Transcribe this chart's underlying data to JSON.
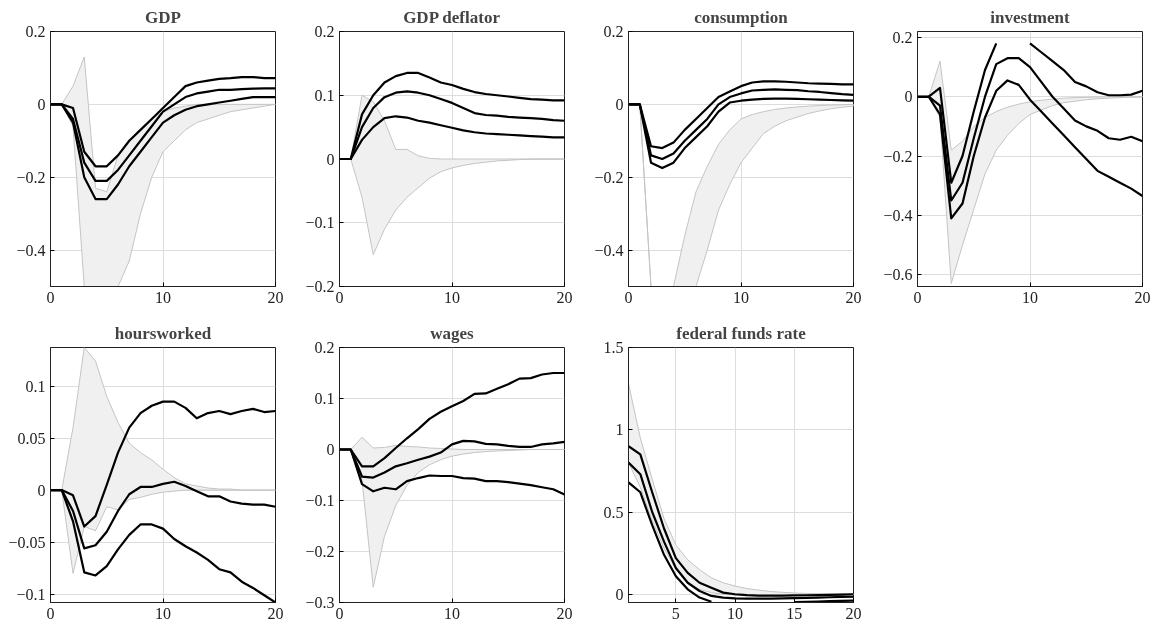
{
  "chart_data": [
    {
      "type": "line",
      "title": "GDP",
      "x": [
        0,
        1,
        2,
        3,
        4,
        5,
        6,
        7,
        8,
        9,
        10,
        11,
        12,
        13,
        14,
        15,
        16,
        17,
        18,
        19,
        20
      ],
      "xlim": [
        0,
        20
      ],
      "xticks": [
        0,
        10,
        20
      ],
      "ylim": [
        -0.5,
        0.2
      ],
      "yticks": [
        -0.4,
        -0.2,
        0,
        0.2
      ],
      "grid": true,
      "series": [
        {
          "color": "#000000",
          "values": [
            0,
            0,
            -0.01,
            -0.13,
            -0.17,
            -0.17,
            -0.14,
            -0.1,
            -0.07,
            -0.04,
            -0.01,
            0.02,
            0.05,
            0.06,
            0.065,
            0.07,
            0.072,
            0.075,
            0.075,
            0.072,
            0.072
          ]
        },
        {
          "color": "#000000",
          "values": [
            0,
            0,
            -0.04,
            -0.16,
            -0.21,
            -0.21,
            -0.18,
            -0.14,
            -0.1,
            -0.06,
            -0.02,
            0,
            0.02,
            0.03,
            0.035,
            0.04,
            0.04,
            0.042,
            0.043,
            0.044,
            0.044
          ],
          "lower": [
            0,
            0,
            -0.06,
            -0.5,
            -0.5,
            -0.5,
            -0.5,
            -0.43,
            -0.3,
            -0.2,
            -0.13,
            -0.1,
            -0.07,
            -0.05,
            -0.04,
            -0.03,
            -0.02,
            -0.015,
            -0.01,
            -0.005,
            0
          ],
          "upper": [
            0,
            0,
            0.05,
            0.13,
            -0.23,
            -0.24,
            -0.14,
            -0.1,
            -0.07,
            -0.04,
            -0.02,
            -0.01,
            -0.005,
            0,
            0,
            0,
            0,
            0,
            0,
            0,
            0
          ]
        },
        {
          "color": "#000000",
          "values": [
            0,
            0,
            -0.05,
            -0.2,
            -0.26,
            -0.26,
            -0.22,
            -0.17,
            -0.13,
            -0.09,
            -0.05,
            -0.03,
            -0.015,
            -0.005,
            0,
            0.005,
            0.01,
            0.015,
            0.02,
            0.02,
            0.02
          ]
        }
      ]
    },
    {
      "type": "line",
      "title": "GDP deflator",
      "x": [
        0,
        1,
        2,
        3,
        4,
        5,
        6,
        7,
        8,
        9,
        10,
        11,
        12,
        13,
        14,
        15,
        16,
        17,
        18,
        19,
        20
      ],
      "xlim": [
        0,
        20
      ],
      "xticks": [
        0,
        10,
        20
      ],
      "ylim": [
        -0.2,
        0.2
      ],
      "yticks": [
        -0.2,
        -0.1,
        0,
        0.1,
        0.2
      ],
      "grid": true,
      "series": [
        {
          "color": "#000000",
          "values": [
            0,
            0,
            0.07,
            0.1,
            0.12,
            0.13,
            0.135,
            0.135,
            0.128,
            0.12,
            0.116,
            0.11,
            0.105,
            0.102,
            0.1,
            0.098,
            0.096,
            0.094,
            0.093,
            0.092,
            0.092
          ]
        },
        {
          "color": "#000000",
          "values": [
            0,
            0,
            0.05,
            0.08,
            0.097,
            0.104,
            0.106,
            0.104,
            0.1,
            0.094,
            0.088,
            0.08,
            0.072,
            0.069,
            0.068,
            0.066,
            0.065,
            0.064,
            0.063,
            0.061,
            0.06
          ],
          "lower": [
            0,
            0,
            -0.06,
            -0.15,
            -0.11,
            -0.08,
            -0.06,
            -0.045,
            -0.03,
            -0.02,
            -0.014,
            -0.01,
            -0.007,
            -0.005,
            -0.003,
            -0.002,
            -0.001,
            0,
            0,
            0,
            0
          ],
          "upper": [
            0,
            0,
            0.1,
            0.09,
            0.06,
            0.015,
            0.015,
            0.005,
            0.001,
            0,
            0,
            0,
            0,
            0,
            0,
            0,
            0,
            0,
            0,
            0,
            0
          ]
        },
        {
          "color": "#000000",
          "values": [
            0,
            0,
            0.03,
            0.05,
            0.064,
            0.067,
            0.065,
            0.06,
            0.057,
            0.053,
            0.049,
            0.045,
            0.042,
            0.04,
            0.039,
            0.038,
            0.037,
            0.036,
            0.035,
            0.034,
            0.034
          ]
        }
      ]
    },
    {
      "type": "line",
      "title": "consumption",
      "x": [
        0,
        1,
        2,
        3,
        4,
        5,
        6,
        7,
        8,
        9,
        10,
        11,
        12,
        13,
        14,
        15,
        16,
        17,
        18,
        19,
        20
      ],
      "xlim": [
        0,
        20
      ],
      "xticks": [
        0,
        10,
        20
      ],
      "ylim": [
        -0.5,
        0.2
      ],
      "yticks": [
        -0.4,
        -0.2,
        0,
        0.2
      ],
      "grid": true,
      "series": [
        {
          "color": "#000000",
          "values": [
            0,
            0,
            -0.115,
            -0.12,
            -0.105,
            -0.07,
            -0.04,
            -0.01,
            0.02,
            0.035,
            0.05,
            0.06,
            0.063,
            0.063,
            0.062,
            0.06,
            0.058,
            0.057,
            0.056,
            0.055,
            0.055
          ]
        },
        {
          "color": "#000000",
          "values": [
            0,
            0,
            -0.14,
            -0.15,
            -0.135,
            -0.1,
            -0.07,
            -0.04,
            0,
            0.02,
            0.03,
            0.038,
            0.04,
            0.041,
            0.04,
            0.039,
            0.036,
            0.034,
            0.031,
            0.028,
            0.026
          ],
          "lower": [
            0,
            0,
            -0.5,
            -0.5,
            -0.5,
            -0.5,
            -0.5,
            -0.4,
            -0.29,
            -0.22,
            -0.16,
            -0.12,
            -0.08,
            -0.06,
            -0.045,
            -0.035,
            -0.025,
            -0.018,
            -0.012,
            -0.008,
            -0.005
          ],
          "upper": [
            0,
            0,
            -0.5,
            -0.5,
            -0.5,
            -0.36,
            -0.24,
            -0.17,
            -0.11,
            -0.07,
            -0.04,
            -0.028,
            -0.02,
            -0.014,
            -0.01,
            -0.007,
            -0.005,
            -0.003,
            -0.002,
            -0.001,
            0
          ]
        },
        {
          "color": "#000000",
          "values": [
            0,
            0,
            -0.16,
            -0.175,
            -0.16,
            -0.12,
            -0.09,
            -0.06,
            -0.02,
            0.005,
            0.01,
            0.013,
            0.015,
            0.016,
            0.016,
            0.015,
            0.014,
            0.013,
            0.012,
            0.011,
            0.01
          ]
        }
      ]
    },
    {
      "type": "line",
      "title": "investment",
      "x": [
        0,
        1,
        2,
        3,
        4,
        5,
        6,
        7,
        8,
        9,
        10,
        11,
        12,
        13,
        14,
        15,
        16,
        17,
        18,
        19,
        20
      ],
      "xlim": [
        0,
        20
      ],
      "xticks": [
        0,
        10,
        20
      ],
      "ylim": [
        -0.64,
        0.22
      ],
      "yticks": [
        -0.6,
        -0.4,
        -0.2,
        0,
        0.2
      ],
      "grid": true,
      "series": [
        {
          "color": "#000000",
          "values": [
            0,
            0,
            0.03,
            -0.29,
            -0.2,
            -0.05,
            0.09,
            0.18,
            null,
            null,
            0.18,
            0.15,
            0.12,
            0.09,
            0.05,
            0.035,
            0.015,
            0.005,
            0.005,
            0.007,
            0.02
          ]
        },
        {
          "color": "#000000",
          "values": [
            0,
            0,
            -0.03,
            -0.35,
            -0.29,
            -0.14,
            0,
            0.11,
            0.13,
            0.13,
            0.1,
            0.05,
            0,
            -0.04,
            -0.08,
            -0.1,
            -0.115,
            -0.14,
            -0.145,
            -0.135,
            -0.15
          ],
          "lower": [
            0,
            0,
            -0.07,
            -0.63,
            -0.5,
            -0.38,
            -0.26,
            -0.18,
            -0.13,
            -0.09,
            -0.06,
            -0.045,
            -0.03,
            -0.02,
            -0.015,
            -0.01,
            -0.007,
            -0.005,
            -0.003,
            -0.002,
            -0.001
          ],
          "upper": [
            0,
            0,
            0.12,
            -0.18,
            -0.15,
            -0.1,
            -0.07,
            -0.05,
            -0.035,
            -0.025,
            -0.017,
            -0.012,
            -0.008,
            -0.005,
            -0.003,
            -0.002,
            -0.001,
            0,
            0,
            0,
            0
          ]
        },
        {
          "color": "#000000",
          "values": [
            0,
            0,
            -0.06,
            -0.41,
            -0.36,
            -0.2,
            -0.07,
            0.02,
            0.055,
            0.04,
            -0.01,
            -0.05,
            -0.09,
            -0.13,
            -0.17,
            -0.21,
            -0.25,
            -0.27,
            -0.29,
            -0.31,
            -0.335
          ]
        }
      ]
    },
    {
      "type": "line",
      "title": "hoursworked",
      "x": [
        0,
        1,
        2,
        3,
        4,
        5,
        6,
        7,
        8,
        9,
        10,
        11,
        12,
        13,
        14,
        15,
        16,
        17,
        18,
        19,
        20
      ],
      "xlim": [
        0,
        20
      ],
      "xticks": [
        0,
        10,
        20
      ],
      "ylim": [
        -0.108,
        0.137
      ],
      "yticks": [
        -0.1,
        -0.05,
        0,
        0.05,
        0.1
      ],
      "grid": true,
      "series": [
        {
          "color": "#000000",
          "values": [
            0,
            0,
            -0.005,
            -0.035,
            -0.025,
            0.005,
            0.036,
            0.06,
            0.074,
            0.081,
            0.085,
            0.085,
            0.079,
            0.069,
            0.074,
            0.076,
            0.073,
            0.076,
            0.078,
            0.075,
            0.076
          ]
        },
        {
          "color": "#000000",
          "values": [
            0,
            0,
            -0.02,
            -0.056,
            -0.053,
            -0.04,
            -0.02,
            -0.004,
            0.003,
            0.003,
            0.006,
            0.008,
            0.004,
            -0.001,
            -0.006,
            -0.006,
            -0.011,
            -0.013,
            -0.014,
            -0.014,
            -0.016
          ],
          "lower": [
            0,
            0,
            -0.08,
            -0.035,
            -0.039,
            -0.016,
            -0.019,
            -0.009,
            -0.007,
            -0.004,
            -0.002,
            -0.001,
            0,
            0,
            0,
            0,
            0,
            0,
            0,
            0,
            0
          ],
          "upper": [
            0,
            0,
            0.06,
            0.137,
            0.124,
            0.09,
            0.065,
            0.045,
            0.036,
            0.029,
            0.02,
            0.012,
            0.006,
            0.004,
            0.002,
            0.001,
            0.001,
            0,
            0,
            0,
            0
          ]
        },
        {
          "color": "#000000",
          "values": [
            0,
            0,
            -0.03,
            -0.079,
            -0.082,
            -0.073,
            -0.057,
            -0.043,
            -0.033,
            -0.033,
            -0.037,
            -0.047,
            -0.054,
            -0.06,
            -0.067,
            -0.076,
            -0.079,
            -0.088,
            -0.094,
            -0.101,
            -0.108
          ]
        }
      ]
    },
    {
      "type": "line",
      "title": "wages",
      "x": [
        0,
        1,
        2,
        3,
        4,
        5,
        6,
        7,
        8,
        9,
        10,
        11,
        12,
        13,
        14,
        15,
        16,
        17,
        18,
        19,
        20
      ],
      "xlim": [
        0,
        20
      ],
      "xticks": [
        0,
        10,
        20
      ],
      "ylim": [
        -0.3,
        0.2
      ],
      "yticks": [
        -0.3,
        -0.2,
        -0.1,
        0,
        0.1,
        0.2
      ],
      "grid": true,
      "series": [
        {
          "color": "#000000",
          "values": [
            0,
            0,
            -0.033,
            -0.033,
            -0.017,
            0.003,
            0.022,
            0.04,
            0.06,
            0.074,
            0.085,
            0.095,
            0.109,
            0.11,
            0.119,
            0.128,
            0.139,
            0.14,
            0.147,
            0.15,
            0.15
          ]
        },
        {
          "color": "#000000",
          "values": [
            0,
            0,
            -0.053,
            -0.055,
            -0.045,
            -0.033,
            -0.027,
            -0.02,
            -0.014,
            -0.006,
            0.01,
            0.017,
            0.016,
            0.011,
            0.01,
            0.007,
            0.005,
            0.005,
            0.01,
            0.012,
            0.015
          ],
          "lower": [
            0,
            0,
            -0.06,
            -0.27,
            -0.17,
            -0.11,
            -0.07,
            -0.045,
            -0.03,
            -0.02,
            -0.013,
            -0.009,
            -0.006,
            -0.004,
            -0.003,
            -0.002,
            -0.001,
            0,
            0,
            0,
            0
          ],
          "upper": [
            0,
            0,
            0.024,
            0.003,
            0.004,
            0.008,
            0.006,
            0.005,
            0.003,
            0.002,
            0.001,
            0,
            0,
            0,
            0,
            0,
            0,
            0,
            0,
            0,
            0
          ]
        },
        {
          "color": "#000000",
          "values": [
            0,
            0,
            -0.068,
            -0.082,
            -0.075,
            -0.078,
            -0.062,
            -0.056,
            -0.051,
            -0.052,
            -0.052,
            -0.056,
            -0.057,
            -0.062,
            -0.062,
            -0.064,
            -0.067,
            -0.07,
            -0.074,
            -0.078,
            -0.088
          ]
        }
      ]
    },
    {
      "type": "line",
      "title": "federal funds rate",
      "x": [
        1,
        2,
        3,
        4,
        5,
        6,
        7,
        8,
        9,
        10,
        11,
        12,
        13,
        14,
        15,
        16,
        17,
        18,
        19,
        20
      ],
      "xlim": [
        1,
        20
      ],
      "xticks": [
        5,
        10,
        15,
        20
      ],
      "ylim": [
        -0.05,
        1.5
      ],
      "yticks": [
        0,
        0.5,
        1,
        1.5
      ],
      "grid": true,
      "series": [
        {
          "color": "#000000",
          "values": [
            0.9,
            0.85,
            0.62,
            0.4,
            0.22,
            0.13,
            0.07,
            0.04,
            0.01,
            0,
            -0.005,
            -0.008,
            -0.008,
            -0.008,
            -0.007,
            -0.006,
            -0.005,
            -0.004,
            -0.002,
            0
          ]
        },
        {
          "color": "#000000",
          "values": [
            0.8,
            0.73,
            0.5,
            0.32,
            0.16,
            0.07,
            0.02,
            -0.01,
            -0.02,
            -0.025,
            -0.027,
            -0.027,
            -0.026,
            -0.025,
            -0.024,
            -0.022,
            -0.02,
            -0.018,
            -0.016,
            -0.015
          ],
          "lower": [
            0.8,
            0.65,
            0.45,
            0.28,
            0.15,
            0.07,
            0.03,
            0.01,
            0,
            -0.005,
            -0.007,
            -0.008,
            -0.008,
            -0.008,
            -0.007,
            -0.006,
            -0.005,
            -0.004,
            -0.003,
            -0.002
          ],
          "upper": [
            1.28,
            0.95,
            0.7,
            0.46,
            0.3,
            0.21,
            0.15,
            0.1,
            0.07,
            0.05,
            0.035,
            0.025,
            0.017,
            0.012,
            0.008,
            0.005,
            0.004,
            0.003,
            0.002,
            0.001
          ]
        },
        {
          "color": "#000000",
          "values": [
            0.68,
            0.62,
            0.42,
            0.24,
            0.11,
            0.03,
            -0.02,
            -0.045,
            null,
            null,
            null,
            null,
            null,
            null,
            -0.048,
            -0.046,
            -0.044,
            -0.042,
            -0.04,
            -0.038
          ]
        }
      ]
    }
  ]
}
